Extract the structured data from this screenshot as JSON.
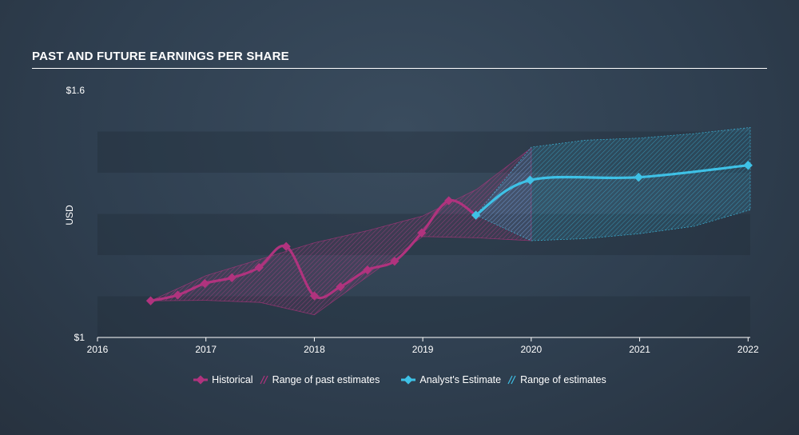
{
  "chart_data": {
    "type": "line",
    "title": "PAST AND FUTURE EARNINGS PER SHARE",
    "ylabel": "USD",
    "ylim": [
      1.0,
      1.6
    ],
    "y_tick_labels": [
      "$1",
      "$1.6"
    ],
    "x_tick_labels": [
      "2016",
      "2017",
      "2018",
      "2019",
      "2020",
      "2021",
      "2022"
    ],
    "xlim": [
      2016.0,
      2022.02
    ],
    "series": [
      {
        "name": "Historical",
        "color": "#b0337e",
        "points": [
          [
            2016.49,
            1.089
          ],
          [
            2016.74,
            1.103
          ],
          [
            2016.99,
            1.131
          ],
          [
            2017.24,
            1.145
          ],
          [
            2017.49,
            1.17
          ],
          [
            2017.74,
            1.221
          ],
          [
            2018.0,
            1.101
          ],
          [
            2018.24,
            1.123
          ],
          [
            2018.49,
            1.164
          ],
          [
            2018.74,
            1.185
          ],
          [
            2018.99,
            1.254
          ],
          [
            2019.24,
            1.332
          ],
          [
            2019.49,
            1.297
          ]
        ]
      },
      {
        "name": "Analyst's Estimate",
        "color": "#3ec1e6",
        "points": [
          [
            2019.49,
            1.297
          ],
          [
            2019.99,
            1.382
          ],
          [
            2020.99,
            1.389
          ],
          [
            2022.0,
            1.418
          ]
        ]
      }
    ],
    "past_range": {
      "name": "Range of past estimates",
      "x": [
        2016.49,
        2017.0,
        2017.5,
        2018.0,
        2018.5,
        2019.0,
        2019.5,
        2020.0
      ],
      "high": [
        1.089,
        1.15,
        1.19,
        1.23,
        1.26,
        1.295,
        1.36,
        1.46
      ],
      "low": [
        1.089,
        1.09,
        1.085,
        1.055,
        1.15,
        1.245,
        1.242,
        1.235
      ]
    },
    "future_range": {
      "name": "Range of estimates",
      "x": [
        2019.49,
        2020.0,
        2020.5,
        2021.0,
        2021.5,
        2022.02
      ],
      "high": [
        1.297,
        1.462,
        1.479,
        1.484,
        1.495,
        1.51
      ],
      "low": [
        1.297,
        1.235,
        1.24,
        1.252,
        1.27,
        1.31
      ]
    },
    "legend_position": "bottom-center"
  },
  "legend": {
    "historical": "Historical",
    "past_range": "Range of past estimates",
    "estimate": "Analyst's Estimate",
    "future_range": "Range of estimates"
  },
  "colors": {
    "historical": "#b0337e",
    "estimate": "#3ec1e6"
  }
}
